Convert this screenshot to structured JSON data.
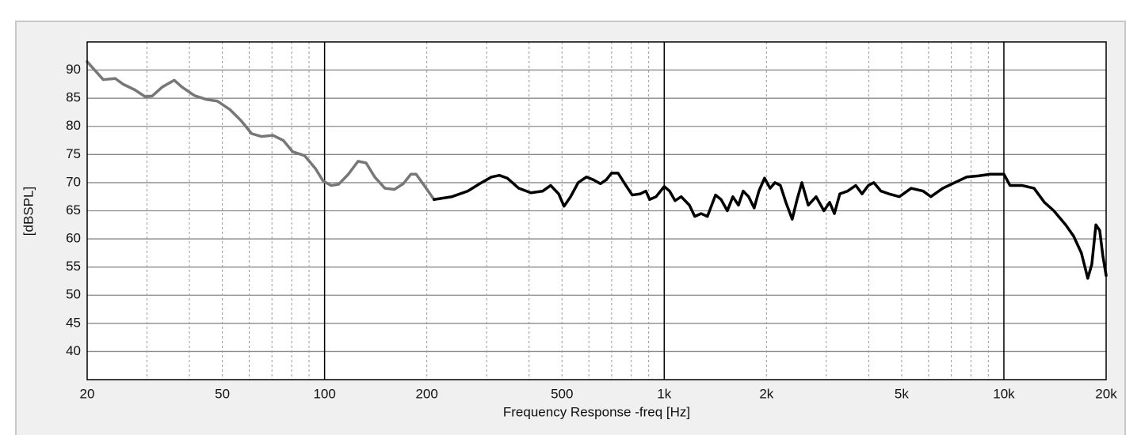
{
  "chart_data": {
    "type": "line",
    "x_label": "Frequency Response -freq [Hz]",
    "y_label": "[dBSPL]",
    "xscale": "log",
    "xlim": [
      20,
      20000
    ],
    "ylim": [
      35,
      95
    ],
    "xticks": [
      20,
      50,
      100,
      200,
      500,
      {
        "value": 1000,
        "label": "1k"
      },
      {
        "value": 2000,
        "label": "2k"
      },
      {
        "value": 5000,
        "label": "5k"
      },
      {
        "value": 10000,
        "label": "10k"
      },
      {
        "value": 20000,
        "label": "20k"
      }
    ],
    "xminor": [
      30,
      40,
      60,
      70,
      80,
      90,
      300,
      400,
      600,
      700,
      800,
      900,
      3000,
      4000,
      6000,
      7000,
      8000,
      9000
    ],
    "yticks": [
      40,
      45,
      50,
      55,
      60,
      65,
      70,
      75,
      80,
      85,
      90
    ],
    "grid": true,
    "series": [
      {
        "color": "#777777",
        "x": [
          20,
          22.3,
          24.2,
          25.5,
          27.6,
          29.6,
          31.1,
          33.3,
          36.1,
          38,
          41.3,
          44.7,
          48.3,
          52.6,
          56.8,
          61,
          65.2,
          70.5,
          75.6,
          80.5,
          87.3,
          94,
          99,
          104.5,
          110,
          117.5,
          125.5,
          132.5,
          140.5,
          150.5,
          160.5,
          170.5,
          179.5,
          186,
          196.5,
          210
        ],
        "values": [
          91.5,
          88.3,
          88.5,
          87.5,
          86.5,
          85.3,
          85.4,
          87,
          88.2,
          87,
          85.5,
          84.8,
          84.5,
          83,
          81,
          78.7,
          78.2,
          78.4,
          77.5,
          75.5,
          74.8,
          72.5,
          70.3,
          69.5,
          69.7,
          71.5,
          73.8,
          73.5,
          71,
          69,
          68.8,
          69.8,
          71.5,
          71.5,
          69.5,
          67
        ]
      },
      {
        "color": "#000000",
        "x": [
          210,
          237,
          264,
          286,
          310,
          327,
          345,
          373,
          405,
          439,
          463,
          489,
          507,
          530,
          558,
          590,
          619,
          649,
          675,
          700,
          731,
          771,
          805,
          849,
          883,
          906,
          946,
          1000,
          1037,
          1076,
          1122,
          1186,
          1230,
          1284,
          1340,
          1416,
          1470,
          1534,
          1592,
          1654,
          1708,
          1772,
          1840,
          1900,
          1974,
          2050,
          2118,
          2198,
          2281,
          2381,
          2461,
          2542,
          2655,
          2800,
          2952,
          3069,
          3170,
          3288,
          3467,
          3665,
          3822,
          3990,
          4140,
          4345,
          4591,
          4924,
          5334,
          5782,
          6096,
          6608,
          7163,
          7767,
          8417,
          9124,
          10000,
          10424,
          11301,
          12270,
          13160,
          14030,
          15200,
          16040,
          16910,
          17660,
          18150,
          18660,
          19150,
          19560,
          20000
        ],
        "values": [
          67,
          67.5,
          68.5,
          69.8,
          71,
          71.3,
          70.8,
          69,
          68.2,
          68.5,
          69.5,
          68,
          65.8,
          67.5,
          70,
          71,
          70.5,
          69.8,
          70.5,
          71.7,
          71.7,
          69.5,
          67.8,
          68,
          68.5,
          67,
          67.5,
          69.3,
          68.5,
          66.8,
          67.5,
          66,
          64,
          64.5,
          64,
          67.8,
          67,
          65,
          67.5,
          66,
          68.5,
          67.5,
          65.5,
          68.5,
          70.8,
          69,
          70,
          69.5,
          66.5,
          63.5,
          67,
          70,
          66,
          67.5,
          65,
          66.5,
          64.5,
          68,
          68.5,
          69.5,
          68,
          69.5,
          70,
          68.5,
          68,
          67.5,
          69,
          68.5,
          67.5,
          69,
          70,
          71,
          71.2,
          71.5,
          71.5,
          69.5,
          69.5,
          69,
          66.5,
          65,
          62.5,
          60.5,
          57.5,
          53,
          55.5,
          62.5,
          61.5,
          57,
          53.5
        ]
      }
    ]
  }
}
